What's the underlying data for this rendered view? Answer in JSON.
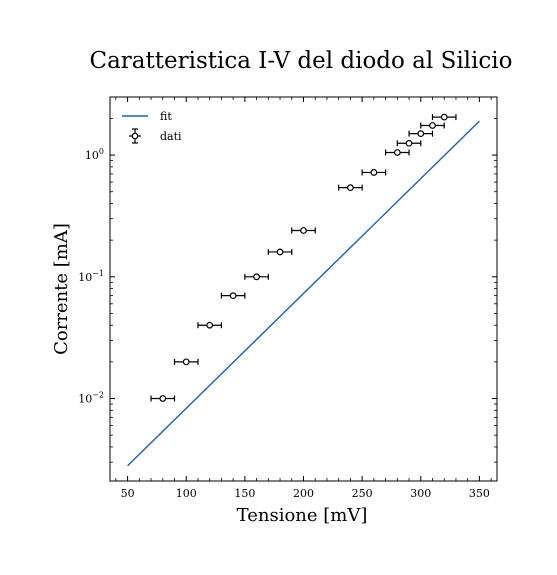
{
  "chart_data": {
    "type": "scatter",
    "title": "Caratteristica I-V del diodo al Silicio",
    "xlabel": "Tensione [mV]",
    "ylabel": "Corrente [mA]",
    "xlim": [
      35,
      365
    ],
    "ylim": [
      0.0021,
      3.0
    ],
    "yscale": "log",
    "grid": false,
    "legend_position": "top-left",
    "x_ticks": [
      {
        "value": 50,
        "label": "50"
      },
      {
        "value": 100,
        "label": "100"
      },
      {
        "value": 150,
        "label": "150"
      },
      {
        "value": 200,
        "label": "200"
      },
      {
        "value": 250,
        "label": "250"
      },
      {
        "value": 300,
        "label": "300"
      },
      {
        "value": 350,
        "label": "350"
      }
    ],
    "y_ticks": [
      {
        "value": 0.01,
        "base": "10",
        "exp": "−2"
      },
      {
        "value": 0.1,
        "base": "10",
        "exp": "−1"
      },
      {
        "value": 1,
        "base": "10",
        "exp": "0"
      }
    ],
    "series": [
      {
        "name": "fit",
        "kind": "line",
        "color": "#1f5fa8",
        "x": [
          50,
          350
        ],
        "y": [
          0.0028,
          1.9
        ]
      },
      {
        "name": "dati",
        "kind": "errorbar",
        "color": "#000000",
        "x_error": 10,
        "x": [
          80,
          100,
          120,
          140,
          160,
          180,
          200,
          240,
          260,
          280,
          290,
          300,
          310,
          320
        ],
        "y": [
          0.01,
          0.02,
          0.04,
          0.07,
          0.1,
          0.16,
          0.24,
          0.54,
          0.72,
          1.05,
          1.25,
          1.5,
          1.75,
          2.05
        ]
      }
    ]
  }
}
